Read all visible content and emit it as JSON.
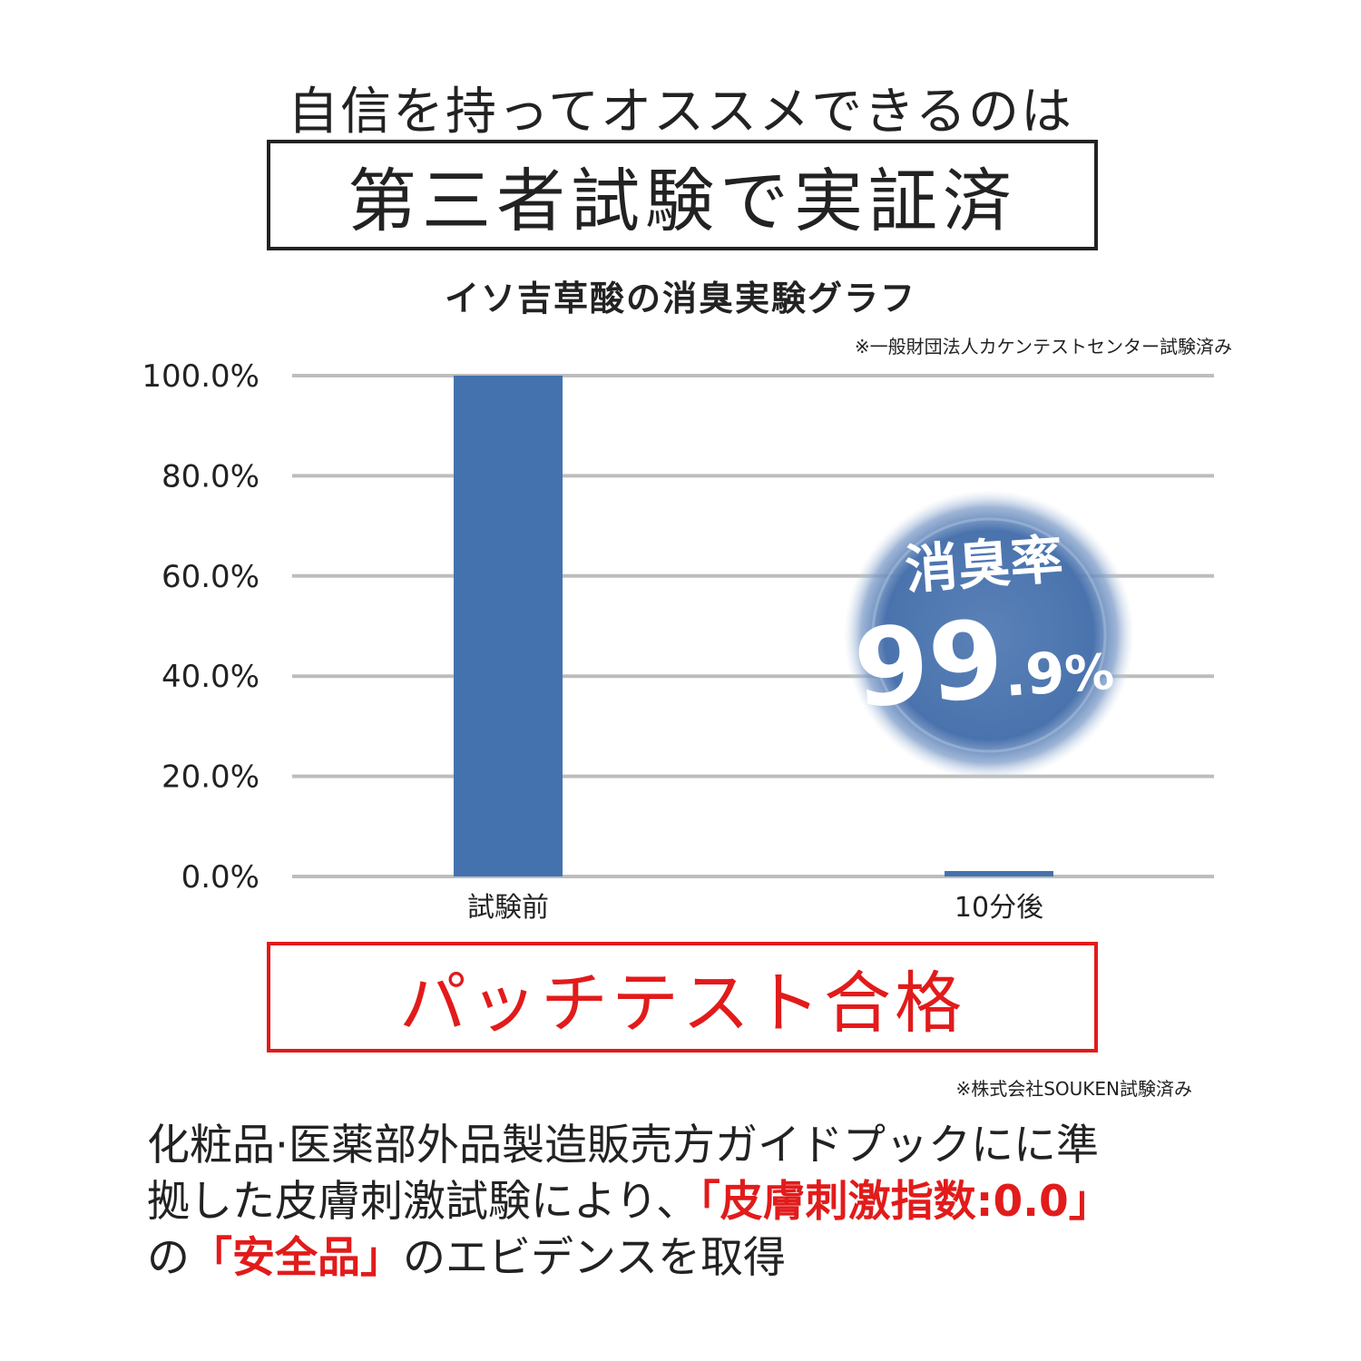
{
  "header": {
    "intro": "自信を持ってオススメできるのは",
    "headline": "第三者試験で実証済"
  },
  "chart_data": {
    "type": "bar",
    "title": "イソ吉草酸の消臭実験グラフ",
    "note": "※一般財団法人カケンテストセンター試験済み",
    "categories": [
      "試験前",
      "10分後"
    ],
    "values": [
      100.0,
      0.1
    ],
    "ylim": [
      0,
      100
    ],
    "yticks": [
      0,
      20,
      40,
      60,
      80,
      100
    ],
    "ytick_labels": [
      "0.0%",
      "20.0%",
      "40.0%",
      "60.0%",
      "80.0%",
      "100.0%"
    ],
    "grid": true,
    "bar_color": "#4472ae",
    "badge": {
      "label": "消臭率",
      "value_main": "99",
      "value_decimal": ".9",
      "value_unit": "%"
    }
  },
  "patch": {
    "headline": "パッチテスト合格",
    "note": "※株式会社SOUKEN試験済み"
  },
  "body": {
    "line1": "化粧品·医薬部外品製造販売方ガイドプックにに準",
    "line2_a": "拠した皮膚刺激試験により、",
    "line2_b": "「皮膚刺激指数:0.0」",
    "line3_a": "の",
    "line3_b": "「安全品」",
    "line3_c": "のエビデンスを取得"
  },
  "colors": {
    "accent_red": "#e21b1b",
    "bar_blue": "#4472ae",
    "grid_gray": "#bdbdbd"
  }
}
